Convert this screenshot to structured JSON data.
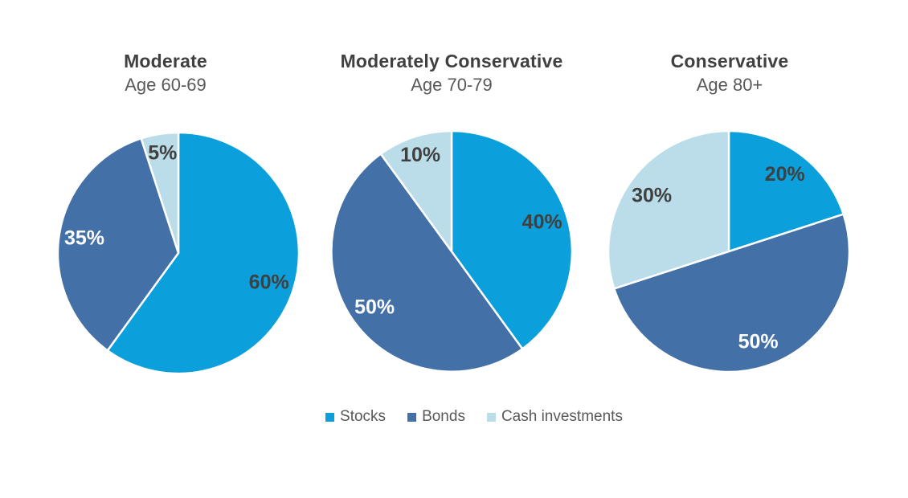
{
  "background": "#FFFFFF",
  "text_colors": {
    "title": "#404040",
    "subtitle": "#595959",
    "legend": "#595959",
    "label_dark": "#404040",
    "label_light": "#FFFFFF"
  },
  "series_colors": {
    "Stocks": "#0B9FDB",
    "Bonds": "#4470A8",
    "Cash investments": "#BBDDE9"
  },
  "legend": {
    "items": [
      {
        "label": "Stocks",
        "color": "#0B9FDB"
      },
      {
        "label": "Bonds",
        "color": "#4470A8"
      },
      {
        "label": "Cash investments",
        "color": "#BBDDE9"
      }
    ]
  },
  "chart_data": [
    {
      "type": "pie",
      "title": "Moderate",
      "subtitle": "Age 60-69",
      "categories": [
        "Stocks",
        "Bonds",
        "Cash investments"
      ],
      "values": [
        60,
        35,
        5
      ],
      "labels": [
        "60%",
        "35%",
        "5%"
      ],
      "colors": [
        "#0B9FDB",
        "#4470A8",
        "#BBDDE9"
      ],
      "start_angle_deg": 0,
      "direction": "clockwise",
      "legend_position": "bottom"
    },
    {
      "type": "pie",
      "title": "Moderately Conservative",
      "subtitle": "Age 70-79",
      "categories": [
        "Stocks",
        "Bonds",
        "Cash investments"
      ],
      "values": [
        40,
        50,
        10
      ],
      "labels": [
        "40%",
        "50%",
        "10%"
      ],
      "colors": [
        "#0B9FDB",
        "#4470A8",
        "#BBDDE9"
      ],
      "start_angle_deg": 0,
      "direction": "clockwise",
      "legend_position": "bottom"
    },
    {
      "type": "pie",
      "title": "Conservative",
      "subtitle": "Age 80+",
      "categories": [
        "Stocks",
        "Bonds",
        "Cash investments"
      ],
      "values": [
        20,
        50,
        30
      ],
      "labels": [
        "20%",
        "50%",
        "30%"
      ],
      "colors": [
        "#0B9FDB",
        "#4470A8",
        "#BBDDE9"
      ],
      "start_angle_deg": 0,
      "direction": "clockwise",
      "legend_position": "bottom"
    }
  ]
}
